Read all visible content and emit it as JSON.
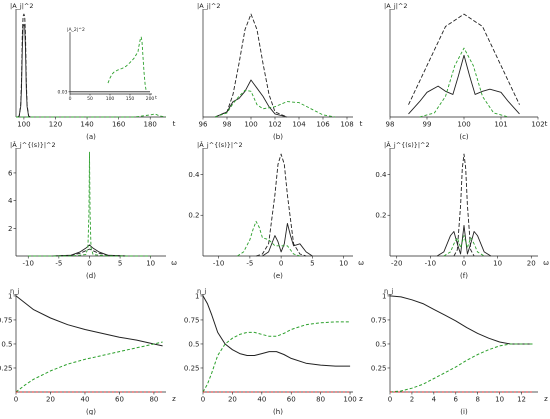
{
  "colors": {
    "black": "#222222",
    "green": "#2ca02c",
    "red": "#d62728"
  },
  "chart_data": [
    {
      "id": "a",
      "type": "line",
      "caption": "(a)",
      "ylabel": "|A_j|^2",
      "xlabel": "t",
      "xlim": [
        95,
        190
      ],
      "ylim": [
        0,
        1.05
      ],
      "xticks": [
        100,
        120,
        140,
        160,
        180
      ],
      "yticks": [],
      "series": [
        {
          "color": "black",
          "dash": "4,2",
          "width": 0.9,
          "x": [
            96,
            97,
            98,
            98.5,
            99,
            99.5,
            100,
            100.5,
            101,
            101.5,
            102,
            103,
            104
          ],
          "y": [
            0,
            0.01,
            0.12,
            0.35,
            0.8,
            0.98,
            1.0,
            0.98,
            0.8,
            0.35,
            0.12,
            0.01,
            0
          ]
        },
        {
          "color": "black",
          "dash": "",
          "width": 0.9,
          "x": [
            96,
            97,
            98,
            98.5,
            99,
            99.5,
            100,
            100.5,
            101,
            101.5,
            102,
            103,
            104
          ],
          "y": [
            0,
            0.01,
            0.1,
            0.28,
            0.66,
            0.88,
            0.9,
            0.88,
            0.66,
            0.28,
            0.1,
            0.01,
            0
          ]
        },
        {
          "color": "green",
          "dash": "3,2",
          "width": 0.9,
          "x": [
            95,
            120,
            140,
            160,
            170,
            175,
            180,
            183,
            186,
            190
          ],
          "y": [
            0,
            0,
            0,
            0,
            0,
            0.01,
            0.02,
            0.03,
            0.01,
            0
          ]
        }
      ],
      "inset": {
        "ylabel": "|A_2|^2",
        "xlabel": "t",
        "xlim": [
          0,
          205
        ],
        "ylim": [
          0,
          0.85
        ],
        "xticks": [
          0,
          50,
          100,
          150,
          200
        ],
        "yticks": [
          0.03
        ],
        "series": [
          {
            "color": "green",
            "dash": "3,2",
            "width": 0.9,
            "x": [
              95,
              100,
              105,
              110,
              120,
              130,
              140,
              150,
              160,
              170,
              172,
              174,
              176,
              178,
              180,
              182,
              185,
              188,
              190,
              192
            ],
            "y": [
              0.15,
              0.22,
              0.27,
              0.3,
              0.33,
              0.35,
              0.38,
              0.43,
              0.49,
              0.58,
              0.65,
              0.7,
              0.76,
              0.78,
              0.72,
              0.55,
              0.3,
              0.12,
              0.06,
              0.03
            ]
          },
          {
            "color": "black",
            "dash": "",
            "width": 0.8,
            "x": [
              0,
              200
            ],
            "y": [
              0.03,
              0.03
            ]
          }
        ]
      }
    },
    {
      "id": "b",
      "type": "line",
      "caption": "(b)",
      "ylabel": "|A_j|^2",
      "xlabel": "t",
      "xlim": [
        96,
        108.5
      ],
      "ylim": [
        0,
        1.05
      ],
      "xticks": [
        96,
        98,
        100,
        102,
        104,
        106,
        108
      ],
      "yticks": [],
      "series": [
        {
          "color": "black",
          "dash": "4,2",
          "width": 0.9,
          "x": [
            97,
            98,
            98.5,
            99,
            99.5,
            100,
            100.5,
            101,
            101.5,
            102,
            103
          ],
          "y": [
            0,
            0.05,
            0.22,
            0.52,
            0.85,
            1.0,
            0.85,
            0.52,
            0.22,
            0.05,
            0
          ]
        },
        {
          "color": "black",
          "dash": "",
          "width": 0.9,
          "x": [
            97,
            98,
            98.5,
            99,
            99.5,
            100,
            100.5,
            101,
            101.5,
            102,
            103
          ],
          "y": [
            0,
            0.05,
            0.15,
            0.18,
            0.25,
            0.36,
            0.28,
            0.2,
            0.1,
            0.03,
            0
          ]
        },
        {
          "color": "green",
          "dash": "3,2",
          "width": 0.9,
          "x": [
            97,
            98,
            98.5,
            99,
            99.5,
            100,
            100.5,
            101,
            102,
            103,
            104,
            105,
            106,
            107
          ],
          "y": [
            0,
            0.04,
            0.13,
            0.2,
            0.26,
            0.25,
            0.12,
            0.08,
            0.1,
            0.15,
            0.14,
            0.08,
            0.02,
            0
          ]
        }
      ]
    },
    {
      "id": "c",
      "type": "line",
      "caption": "(c)",
      "ylabel": "|A_j|^2",
      "xlabel": "t",
      "xlim": [
        98,
        102
      ],
      "ylim": [
        0,
        1.05
      ],
      "xticks": [
        98,
        99,
        100,
        101,
        102
      ],
      "yticks": [],
      "series": [
        {
          "color": "black",
          "dash": "4,2",
          "width": 0.9,
          "x": [
            98.5,
            99,
            99.5,
            100,
            100.5,
            101,
            101.5
          ],
          "y": [
            0.12,
            0.5,
            0.88,
            1.0,
            0.88,
            0.5,
            0.12
          ]
        },
        {
          "color": "black",
          "dash": "",
          "width": 0.9,
          "x": [
            98.5,
            98.8,
            99,
            99.3,
            99.5,
            99.7,
            99.85,
            100,
            100.15,
            100.3,
            100.5,
            100.7,
            101,
            101.2,
            101.5
          ],
          "y": [
            0.03,
            0.15,
            0.24,
            0.3,
            0.25,
            0.22,
            0.4,
            0.6,
            0.4,
            0.22,
            0.25,
            0.27,
            0.24,
            0.15,
            0.03
          ]
        },
        {
          "color": "green",
          "dash": "3,2",
          "width": 0.9,
          "x": [
            98.8,
            99.2,
            99.5,
            99.75,
            100,
            100.25,
            100.5,
            100.8,
            101.2
          ],
          "y": [
            0.0,
            0.04,
            0.2,
            0.5,
            0.67,
            0.5,
            0.2,
            0.04,
            0.0
          ]
        }
      ]
    },
    {
      "id": "d",
      "type": "line",
      "caption": "(d)",
      "ylabel": "|Â_j^{(s)}|^2",
      "xlabel": "ω",
      "xlim": [
        -12,
        12.5
      ],
      "ylim": [
        0,
        7.8
      ],
      "xticks": [
        -10,
        -5,
        0,
        5,
        10
      ],
      "yticks": [
        2,
        4,
        6
      ],
      "series": [
        {
          "color": "black",
          "dash": "4,2",
          "width": 0.9,
          "x": [
            -6,
            -3,
            -1.5,
            -0.5,
            0,
            0.5,
            1.5,
            3,
            6
          ],
          "y": [
            0,
            0.05,
            0.2,
            0.4,
            0.5,
            0.4,
            0.2,
            0.05,
            0
          ]
        },
        {
          "color": "black",
          "dash": "",
          "width": 0.9,
          "x": [
            -6,
            -3,
            -1.5,
            -0.5,
            0,
            0.5,
            1.5,
            3,
            6
          ],
          "y": [
            0,
            0.06,
            0.3,
            0.6,
            0.8,
            0.6,
            0.3,
            0.06,
            0
          ]
        },
        {
          "color": "green",
          "dash": "3,2",
          "width": 0.9,
          "x": [
            -10,
            -3,
            -0.6,
            -0.25,
            -0.1,
            0,
            0.1,
            0.25,
            0.6,
            3,
            10
          ],
          "y": [
            0,
            0,
            0.1,
            0.6,
            3.0,
            7.5,
            3.0,
            0.6,
            0.1,
            0,
            0
          ]
        }
      ]
    },
    {
      "id": "e",
      "type": "line",
      "caption": "(e)",
      "ylabel": "|Â_j^{(s)}|^2",
      "xlabel": "ω",
      "xlim": [
        -12.5,
        11.5
      ],
      "ylim": [
        0,
        0.53
      ],
      "xticks": [
        -10,
        -5,
        0,
        5,
        10
      ],
      "yticks": [
        0.2,
        0.4
      ],
      "series": [
        {
          "color": "black",
          "dash": "4,2",
          "width": 0.9,
          "x": [
            -4,
            -3,
            -2,
            -1,
            -0.5,
            0,
            0.5,
            1,
            2,
            3,
            4
          ],
          "y": [
            0,
            0.01,
            0.06,
            0.3,
            0.45,
            0.5,
            0.45,
            0.3,
            0.06,
            0.01,
            0
          ]
        },
        {
          "color": "black",
          "dash": "",
          "width": 0.9,
          "x": [
            -3,
            -2,
            -1,
            -0.5,
            0,
            0.5,
            1,
            1.5,
            2,
            3,
            4,
            5
          ],
          "y": [
            0,
            0.02,
            0.1,
            0.07,
            0.02,
            0.06,
            0.16,
            0.1,
            0.05,
            0.06,
            0.02,
            0
          ]
        },
        {
          "color": "green",
          "dash": "3,2",
          "width": 0.9,
          "x": [
            -7,
            -6,
            -5,
            -4.5,
            -4,
            -3.5,
            -3,
            -2,
            -1,
            0,
            1,
            2,
            3
          ],
          "y": [
            0,
            0.02,
            0.08,
            0.13,
            0.17,
            0.14,
            0.09,
            0.08,
            0.05,
            0.05,
            0.05,
            0.01,
            0
          ]
        }
      ]
    },
    {
      "id": "f",
      "type": "line",
      "caption": "(f)",
      "ylabel": "|Â_j^{(s)}|^2",
      "xlabel": "ω",
      "xlim": [
        -22,
        22
      ],
      "ylim": [
        0,
        0.53
      ],
      "xticks": [
        -20,
        -10,
        0,
        10,
        20
      ],
      "yticks": [
        0.2,
        0.4
      ],
      "series": [
        {
          "color": "black",
          "dash": "4,2",
          "width": 0.9,
          "x": [
            -3,
            -2,
            -1,
            -0.5,
            0,
            0.5,
            1,
            2,
            3
          ],
          "y": [
            0,
            0.03,
            0.25,
            0.43,
            0.5,
            0.43,
            0.25,
            0.03,
            0
          ]
        },
        {
          "color": "black",
          "dash": "",
          "width": 0.9,
          "x": [
            -8,
            -6,
            -4,
            -3,
            -2,
            -1,
            0,
            1,
            2,
            3,
            4,
            6,
            8
          ],
          "y": [
            0,
            0.02,
            0.1,
            0.12,
            0.06,
            0.01,
            0.15,
            0.01,
            0.06,
            0.12,
            0.1,
            0.02,
            0
          ]
        },
        {
          "color": "green",
          "dash": "3,2",
          "width": 0.9,
          "x": [
            -6,
            -4,
            -3,
            -2,
            -1,
            0,
            1,
            2,
            3,
            4,
            6
          ],
          "y": [
            0,
            0.02,
            0.06,
            0.09,
            0.04,
            0.1,
            0.04,
            0.09,
            0.06,
            0.02,
            0
          ]
        }
      ]
    },
    {
      "id": "g",
      "type": "line",
      "caption": "(g)",
      "ylabel": "η_j",
      "xlabel": "z",
      "xlim": [
        0,
        87
      ],
      "ylim": [
        0,
        1.02
      ],
      "xticks": [
        0,
        20,
        40,
        60,
        80
      ],
      "yticks": [
        0.25,
        0.5,
        0.75,
        1.0
      ],
      "series": [
        {
          "color": "black",
          "dash": "",
          "width": 1.0,
          "x": [
            0,
            5,
            10,
            20,
            30,
            40,
            50,
            60,
            70,
            80,
            85
          ],
          "y": [
            1.0,
            0.93,
            0.86,
            0.77,
            0.7,
            0.65,
            0.61,
            0.57,
            0.54,
            0.5,
            0.48
          ]
        },
        {
          "color": "green",
          "dash": "3,2",
          "width": 1.0,
          "x": [
            0,
            5,
            10,
            20,
            30,
            40,
            50,
            60,
            70,
            80,
            85
          ],
          "y": [
            0.0,
            0.07,
            0.13,
            0.22,
            0.29,
            0.34,
            0.38,
            0.42,
            0.46,
            0.5,
            0.52
          ]
        },
        {
          "color": "red",
          "dash": "2,2",
          "width": 1.0,
          "x": [
            0,
            85
          ],
          "y": [
            0.0,
            0.0
          ]
        }
      ]
    },
    {
      "id": "h",
      "type": "line",
      "caption": "(h)",
      "ylabel": "η_j",
      "xlabel": "z",
      "xlim": [
        0,
        102
      ],
      "ylim": [
        0,
        1.02
      ],
      "xticks": [
        0,
        20,
        40,
        60,
        80,
        100
      ],
      "yticks": [
        0.25,
        0.5,
        0.75,
        1.0
      ],
      "series": [
        {
          "color": "black",
          "dash": "",
          "width": 1.0,
          "x": [
            0,
            3,
            6,
            10,
            15,
            20,
            25,
            30,
            35,
            40,
            45,
            50,
            55,
            60,
            70,
            80,
            90,
            100
          ],
          "y": [
            1.0,
            0.92,
            0.8,
            0.62,
            0.5,
            0.44,
            0.4,
            0.38,
            0.38,
            0.4,
            0.42,
            0.42,
            0.39,
            0.35,
            0.3,
            0.28,
            0.27,
            0.27
          ]
        },
        {
          "color": "green",
          "dash": "3,2",
          "width": 1.0,
          "x": [
            0,
            3,
            6,
            10,
            15,
            20,
            25,
            30,
            35,
            40,
            45,
            50,
            55,
            60,
            70,
            80,
            90,
            100
          ],
          "y": [
            0.0,
            0.08,
            0.2,
            0.38,
            0.5,
            0.56,
            0.6,
            0.62,
            0.62,
            0.6,
            0.58,
            0.58,
            0.61,
            0.65,
            0.7,
            0.72,
            0.73,
            0.73
          ]
        },
        {
          "color": "red",
          "dash": "2,2",
          "width": 1.0,
          "x": [
            0,
            100
          ],
          "y": [
            0.0,
            0.0
          ]
        }
      ]
    },
    {
      "id": "i",
      "type": "line",
      "caption": "(i)",
      "ylabel": "η_j",
      "xlabel": "z",
      "xlim": [
        0,
        13.5
      ],
      "ylim": [
        0,
        1.02
      ],
      "xticks": [
        0,
        2,
        4,
        6,
        8,
        10,
        12
      ],
      "yticks": [
        0.25,
        0.5,
        0.75,
        1.0
      ],
      "series": [
        {
          "color": "black",
          "dash": "",
          "width": 1.0,
          "x": [
            0,
            1,
            2,
            3,
            4,
            5,
            6,
            7,
            8,
            9,
            10,
            11,
            12,
            13
          ],
          "y": [
            1.0,
            0.99,
            0.96,
            0.92,
            0.86,
            0.8,
            0.74,
            0.67,
            0.61,
            0.56,
            0.52,
            0.5,
            0.5,
            0.5
          ]
        },
        {
          "color": "green",
          "dash": "3,2",
          "width": 1.0,
          "x": [
            0,
            1,
            2,
            3,
            4,
            5,
            6,
            7,
            8,
            9,
            10,
            11,
            12,
            13
          ],
          "y": [
            0.0,
            0.01,
            0.04,
            0.08,
            0.14,
            0.2,
            0.26,
            0.33,
            0.39,
            0.44,
            0.48,
            0.5,
            0.5,
            0.5
          ]
        },
        {
          "color": "red",
          "dash": "2,2",
          "width": 1.0,
          "x": [
            0,
            13
          ],
          "y": [
            0.0,
            0.0
          ]
        }
      ]
    }
  ]
}
